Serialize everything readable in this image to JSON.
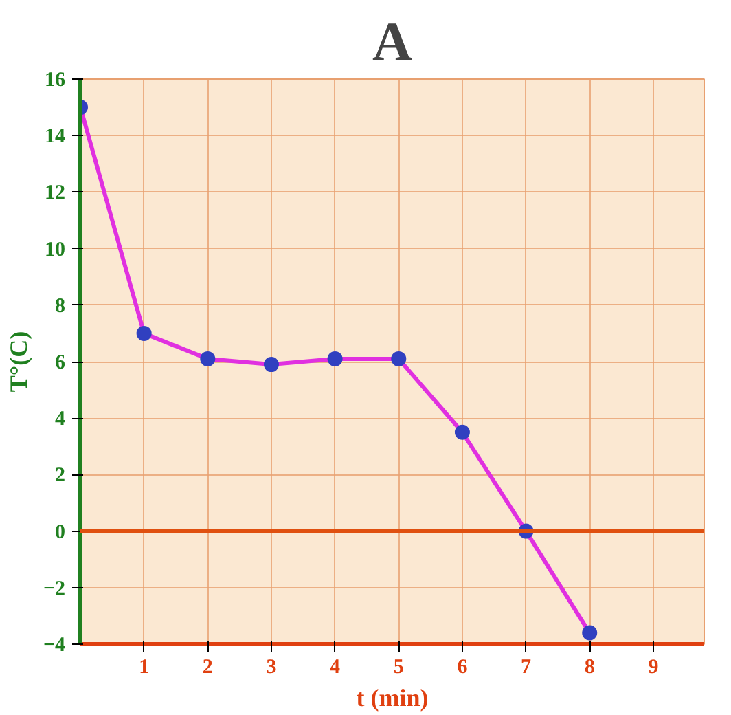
{
  "chart_data": {
    "type": "line",
    "title": "A",
    "xlabel": "t (min)",
    "ylabel": "T°(C)",
    "x": [
      0,
      1,
      2,
      3,
      4,
      5,
      6,
      7,
      8
    ],
    "series": [
      {
        "color": "#e030e0",
        "values": [
          15,
          7,
          6.1,
          5.9,
          6.1,
          6.1,
          3.5,
          0,
          -3.6
        ]
      }
    ],
    "xlim": [
      0,
      9.8
    ],
    "ylim": [
      -4,
      16
    ],
    "xticks": [
      1,
      2,
      3,
      4,
      5,
      6,
      7,
      8,
      9
    ],
    "yticks": [
      -4,
      -2,
      0,
      2,
      4,
      6,
      8,
      10,
      12,
      14,
      16
    ],
    "ref_lines": [
      {
        "axis": "y",
        "value": 0,
        "color": "#e05010"
      }
    ],
    "grid": true,
    "marker": "circle",
    "line_style": "solid"
  }
}
